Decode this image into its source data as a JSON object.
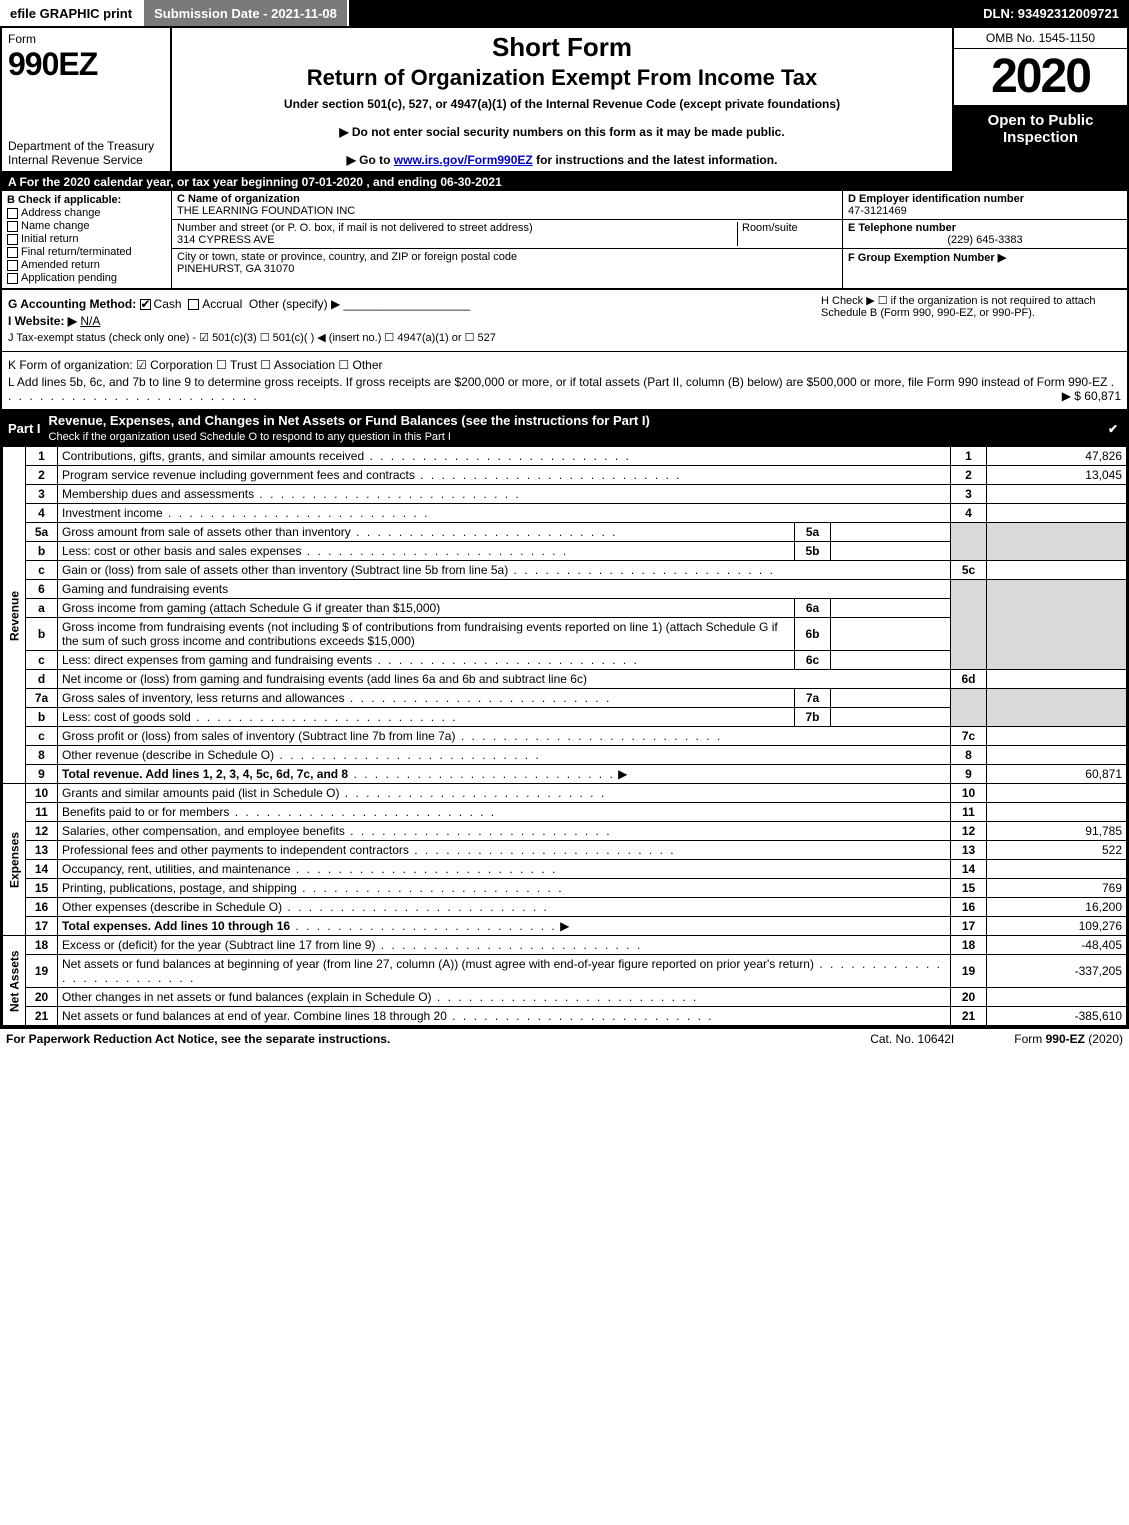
{
  "topbar": {
    "efile": "efile GRAPHIC print",
    "submission": "Submission Date - 2021-11-08",
    "dln": "DLN: 93492312009721"
  },
  "header": {
    "form_word": "Form",
    "form_num": "990EZ",
    "dept1": "Department of the Treasury",
    "dept2": "Internal Revenue Service",
    "short_form": "Short Form",
    "title": "Return of Organization Exempt From Income Tax",
    "subtitle": "Under section 501(c), 527, or 4947(a)(1) of the Internal Revenue Code (except private foundations)",
    "note1": "▶ Do not enter social security numbers on this form as it may be made public.",
    "note2_pre": "▶ Go to ",
    "note2_link": "www.irs.gov/Form990EZ",
    "note2_post": " for instructions and the latest information.",
    "omb": "OMB No. 1545-1150",
    "year": "2020",
    "open": "Open to Public Inspection"
  },
  "row_a": "A For the 2020 calendar year, or tax year beginning 07-01-2020 , and ending 06-30-2021",
  "section_b": {
    "label": "B  Check if applicable:",
    "opts": [
      "Address change",
      "Name change",
      "Initial return",
      "Final return/terminated",
      "Amended return",
      "Application pending"
    ]
  },
  "section_c": {
    "name_label": "C Name of organization",
    "name": "THE LEARNING FOUNDATION INC",
    "addr_label": "Number and street (or P. O. box, if mail is not delivered to street address)",
    "addr": "314 CYPRESS AVE",
    "room_label": "Room/suite",
    "city_label": "City or town, state or province, country, and ZIP or foreign postal code",
    "city": "PINEHURST, GA  31070"
  },
  "section_def": {
    "d_label": "D Employer identification number",
    "d_val": "47-3121469",
    "e_label": "E Telephone number",
    "e_val": "(229) 645-3383",
    "f_label": "F Group Exemption Number   ▶"
  },
  "section_g": {
    "g": "G Accounting Method:",
    "cash": "Cash",
    "accrual": "Accrual",
    "other": "Other (specify) ▶",
    "h": "H  Check ▶  ☐  if the organization is not required to attach Schedule B (Form 990, 990-EZ, or 990-PF).",
    "i_label": "I Website: ▶",
    "i_val": "N/A",
    "j": "J Tax-exempt status (check only one) -  ☑ 501(c)(3)  ☐ 501(c)(  ) ◀ (insert no.)  ☐ 4947(a)(1) or  ☐ 527"
  },
  "section_k": {
    "k": "K Form of organization:   ☑ Corporation   ☐ Trust   ☐ Association   ☐ Other",
    "l": "L Add lines 5b, 6c, and 7b to line 9 to determine gross receipts. If gross receipts are $200,000 or more, or if total assets (Part II, column (B) below) are $500,000 or more, file Form 990 instead of Form 990-EZ",
    "l_val": "▶ $ 60,871"
  },
  "part1": {
    "label": "Part I",
    "title": "Revenue, Expenses, and Changes in Net Assets or Fund Balances (see the instructions for Part I)",
    "subtitle": "Check if the organization used Schedule O to respond to any question in this Part I"
  },
  "sides": {
    "revenue": "Revenue",
    "expenses": "Expenses",
    "netassets": "Net Assets"
  },
  "lines": {
    "r1": {
      "n": "1",
      "d": "Contributions, gifts, grants, and similar amounts received",
      "rn": "1",
      "v": "47,826"
    },
    "r2": {
      "n": "2",
      "d": "Program service revenue including government fees and contracts",
      "rn": "2",
      "v": "13,045"
    },
    "r3": {
      "n": "3",
      "d": "Membership dues and assessments",
      "rn": "3",
      "v": ""
    },
    "r4": {
      "n": "4",
      "d": "Investment income",
      "rn": "4",
      "v": ""
    },
    "r5a": {
      "n": "5a",
      "d": "Gross amount from sale of assets other than inventory",
      "sub": "5a"
    },
    "r5b": {
      "n": "b",
      "d": "Less: cost or other basis and sales expenses",
      "sub": "5b"
    },
    "r5c": {
      "n": "c",
      "d": "Gain or (loss) from sale of assets other than inventory (Subtract line 5b from line 5a)",
      "rn": "5c",
      "v": ""
    },
    "r6": {
      "n": "6",
      "d": "Gaming and fundraising events"
    },
    "r6a": {
      "n": "a",
      "d": "Gross income from gaming (attach Schedule G if greater than $15,000)",
      "sub": "6a"
    },
    "r6b": {
      "n": "b",
      "d": "Gross income from fundraising events (not including $            of contributions from fundraising events reported on line 1) (attach Schedule G if the sum of such gross income and contributions exceeds $15,000)",
      "sub": "6b"
    },
    "r6c": {
      "n": "c",
      "d": "Less: direct expenses from gaming and fundraising events",
      "sub": "6c"
    },
    "r6d": {
      "n": "d",
      "d": "Net income or (loss) from gaming and fundraising events (add lines 6a and 6b and subtract line 6c)",
      "rn": "6d",
      "v": ""
    },
    "r7a": {
      "n": "7a",
      "d": "Gross sales of inventory, less returns and allowances",
      "sub": "7a"
    },
    "r7b": {
      "n": "b",
      "d": "Less: cost of goods sold",
      "sub": "7b"
    },
    "r7c": {
      "n": "c",
      "d": "Gross profit or (loss) from sales of inventory (Subtract line 7b from line 7a)",
      "rn": "7c",
      "v": ""
    },
    "r8": {
      "n": "8",
      "d": "Other revenue (describe in Schedule O)",
      "rn": "8",
      "v": ""
    },
    "r9": {
      "n": "9",
      "d": "Total revenue. Add lines 1, 2, 3, 4, 5c, 6d, 7c, and 8",
      "rn": "9",
      "v": "60,871"
    },
    "e10": {
      "n": "10",
      "d": "Grants and similar amounts paid (list in Schedule O)",
      "rn": "10",
      "v": ""
    },
    "e11": {
      "n": "11",
      "d": "Benefits paid to or for members",
      "rn": "11",
      "v": ""
    },
    "e12": {
      "n": "12",
      "d": "Salaries, other compensation, and employee benefits",
      "rn": "12",
      "v": "91,785"
    },
    "e13": {
      "n": "13",
      "d": "Professional fees and other payments to independent contractors",
      "rn": "13",
      "v": "522"
    },
    "e14": {
      "n": "14",
      "d": "Occupancy, rent, utilities, and maintenance",
      "rn": "14",
      "v": ""
    },
    "e15": {
      "n": "15",
      "d": "Printing, publications, postage, and shipping",
      "rn": "15",
      "v": "769"
    },
    "e16": {
      "n": "16",
      "d": "Other expenses (describe in Schedule O)",
      "rn": "16",
      "v": "16,200"
    },
    "e17": {
      "n": "17",
      "d": "Total expenses. Add lines 10 through 16",
      "rn": "17",
      "v": "109,276"
    },
    "n18": {
      "n": "18",
      "d": "Excess or (deficit) for the year (Subtract line 17 from line 9)",
      "rn": "18",
      "v": "-48,405"
    },
    "n19": {
      "n": "19",
      "d": "Net assets or fund balances at beginning of year (from line 27, column (A)) (must agree with end-of-year figure reported on prior year's return)",
      "rn": "19",
      "v": "-337,205"
    },
    "n20": {
      "n": "20",
      "d": "Other changes in net assets or fund balances (explain in Schedule O)",
      "rn": "20",
      "v": ""
    },
    "n21": {
      "n": "21",
      "d": "Net assets or fund balances at end of year. Combine lines 18 through 20",
      "rn": "21",
      "v": "-385,610"
    }
  },
  "footer": {
    "left": "For Paperwork Reduction Act Notice, see the separate instructions.",
    "center": "Cat. No. 10642I",
    "right_pre": "Form ",
    "right_bold": "990-EZ",
    "right_post": " (2020)"
  },
  "colors": {
    "black": "#000000",
    "white": "#ffffff",
    "gray_btn": "#7a7a7a",
    "gray_cell": "#d9d9d9",
    "link": "#0000cc"
  }
}
